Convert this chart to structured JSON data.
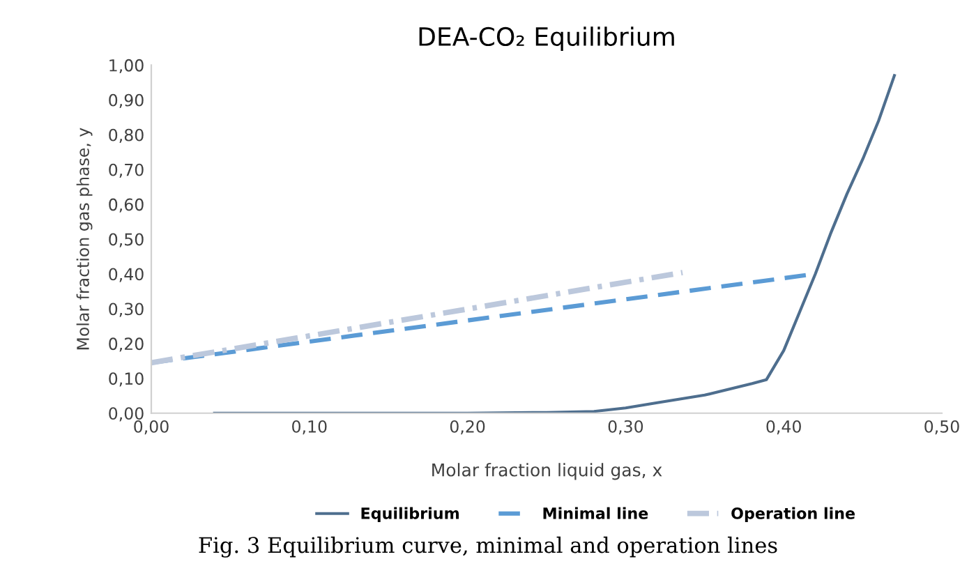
{
  "chart_data": {
    "type": "line",
    "title": "DEA-CO₂ Equilibrium",
    "xlabel": "Molar fraction liquid gas, x",
    "ylabel": "Molar fraction gas phase, y",
    "xlim": [
      0,
      0.5
    ],
    "xticks": [
      {
        "value": 0,
        "label": "0,00"
      },
      {
        "value": 0.1,
        "label": "0,10"
      },
      {
        "value": 0.2,
        "label": "0,20"
      },
      {
        "value": 0.3,
        "label": "0,30"
      },
      {
        "value": 0.4,
        "label": "0,40"
      },
      {
        "value": 0.5,
        "label": "0,50"
      }
    ],
    "ylim": [
      0,
      1
    ],
    "yticks": [
      {
        "value": 0,
        "label": "0,00"
      },
      {
        "value": 0.1,
        "label": "0,10"
      },
      {
        "value": 0.2,
        "label": "0,20"
      },
      {
        "value": 0.3,
        "label": "0,30"
      },
      {
        "value": 0.4,
        "label": "0,40"
      },
      {
        "value": 0.5,
        "label": "0,50"
      },
      {
        "value": 0.6,
        "label": "0,60"
      },
      {
        "value": 0.7,
        "label": "0,70"
      },
      {
        "value": 0.8,
        "label": "0,80"
      },
      {
        "value": 0.9,
        "label": "0,90"
      },
      {
        "value": 1,
        "label": "1,00"
      }
    ],
    "grid": false,
    "legend": "bottom",
    "marker": "none",
    "series": [
      {
        "name": "Equilibrium",
        "color": "#4e6e8e",
        "line_style": "solid",
        "x": [
          0.04,
          0.1,
          0.2,
          0.25,
          0.28,
          0.3,
          0.32,
          0.35,
          0.38,
          0.389,
          0.4,
          0.41,
          0.42,
          0.43,
          0.44,
          0.45,
          0.46,
          0.47
        ],
        "values": [
          0,
          0,
          0,
          0.002,
          0.005,
          0.015,
          0.03,
          0.052,
          0.085,
          0.096,
          0.18,
          0.29,
          0.4,
          0.52,
          0.63,
          0.73,
          0.84,
          0.97
        ]
      },
      {
        "name": "Minimal line",
        "color": "#5b9bd5",
        "line_style": "dashed",
        "x": [
          0,
          0.42
        ],
        "values": [
          0.145,
          0.4
        ]
      },
      {
        "name": "Operation line",
        "color": "#bcc8dc",
        "line_style": "dashdot",
        "x": [
          0,
          0.336
        ],
        "values": [
          0.145,
          0.404
        ]
      }
    ],
    "annotations": [
      "Fig. 3 Equilibrium curve, minimal and operation lines"
    ]
  }
}
